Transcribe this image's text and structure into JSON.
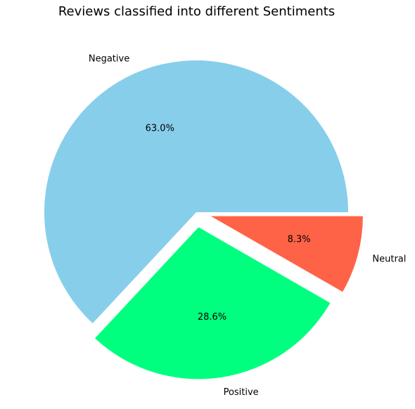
{
  "chart_data": {
    "type": "pie",
    "title": "Reviews classified into different Sentiments",
    "slices": [
      {
        "label": "Negative",
        "value": 63.0,
        "pct_label": "63.0%",
        "color": "#87CEEB",
        "exploded": false
      },
      {
        "label": "Positive",
        "value": 28.6,
        "pct_label": "28.6%",
        "color": "#00FF7F",
        "exploded": true
      },
      {
        "label": "Neutral",
        "value": 8.3,
        "pct_label": "8.3%",
        "color": "#FF6347",
        "exploded": true
      }
    ],
    "start_angle_deg": 0,
    "direction": "counterclockwise",
    "legend": "none"
  }
}
